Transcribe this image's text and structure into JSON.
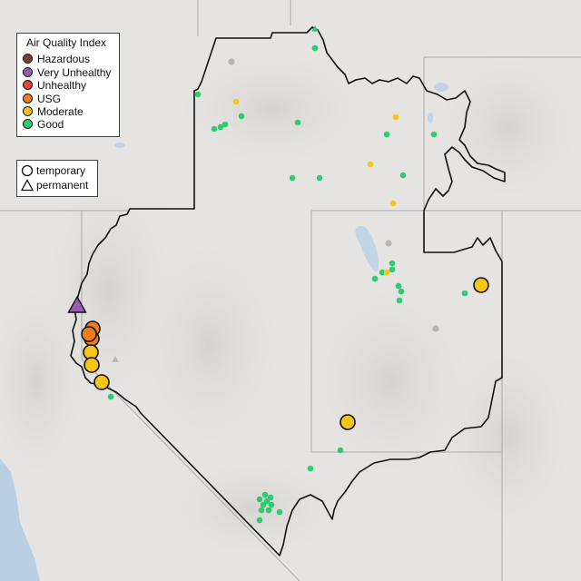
{
  "legend": {
    "title": "Air Quality Index",
    "categories": [
      {
        "key": "hazardous",
        "label": "Hazardous",
        "color": "#7e3b2e"
      },
      {
        "key": "very_unhealthy",
        "label": "Very Unhealthy",
        "color": "#9b59b6"
      },
      {
        "key": "unhealthy",
        "label": "Unhealthy",
        "color": "#e2492f"
      },
      {
        "key": "usg",
        "label": "USG",
        "color": "#ee7d1d"
      },
      {
        "key": "moderate",
        "label": "Moderate",
        "color": "#f5c518"
      },
      {
        "key": "good",
        "label": "Good",
        "color": "#2ecc71"
      }
    ]
  },
  "monitor_types": {
    "temporary": "temporary",
    "permanent": "permanent"
  },
  "colors": {
    "no_data": "#b5b5b5",
    "water": "#b9cfe4",
    "land": "#e6e4e2",
    "boundary": "#111111"
  }
}
